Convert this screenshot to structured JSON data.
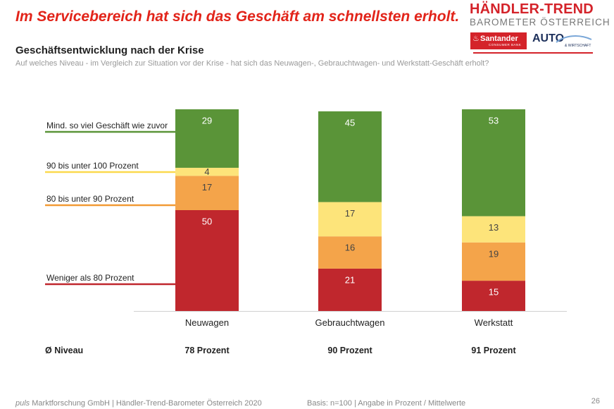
{
  "headline": "Im Servicebereich hat sich das Geschäft am schnellsten erholt.",
  "brand": {
    "title": "HÄNDLER-TREND",
    "subtitle": "BAROMETER ÖSTERREICH",
    "santander_name": "Santander",
    "santander_sub": "CONSUMER BANK",
    "auto_text": "AUTO",
    "auto_sub": "& WIRTSCHAFT",
    "accent": "#d4232a"
  },
  "chart_data": {
    "type": "bar",
    "stacked": true,
    "title": "Geschäftsentwicklung nach der Krise",
    "subtitle": "Auf welches Niveau - im Vergleich zur Situation vor der Krise - hat sich das Neuwagen-, Gebrauchtwagen- und Werkstatt-Geschäft erholt?",
    "categories": [
      "Neuwagen",
      "Gebrauchtwagen",
      "Werkstatt"
    ],
    "series": [
      {
        "name": "Weniger als 80 Prozent",
        "values": [
          50,
          21,
          15
        ],
        "color": "#c0272d"
      },
      {
        "name": "80 bis unter 90 Prozent",
        "values": [
          17,
          16,
          19
        ],
        "color": "#f4a44a"
      },
      {
        "name": "90 bis unter 100 Prozent",
        "values": [
          4,
          17,
          13
        ],
        "color": "#fde47a"
      },
      {
        "name": "Mind. so viel Geschäft wie zuvor",
        "values": [
          29,
          45,
          53
        ],
        "color": "#5a9438"
      }
    ],
    "ylim": [
      0,
      100
    ],
    "legend_position": "left",
    "average_label": "Ø Niveau",
    "averages": [
      "78 Prozent",
      "90 Prozent",
      "91 Prozent"
    ]
  },
  "footer": {
    "company": "puls",
    "source": " Marktforschung GmbH | Händler-Trend-Barometer Österreich 2020",
    "basis": "Basis: n=100 | Angabe in Prozent / Mittelwerte",
    "page_number": "26"
  }
}
